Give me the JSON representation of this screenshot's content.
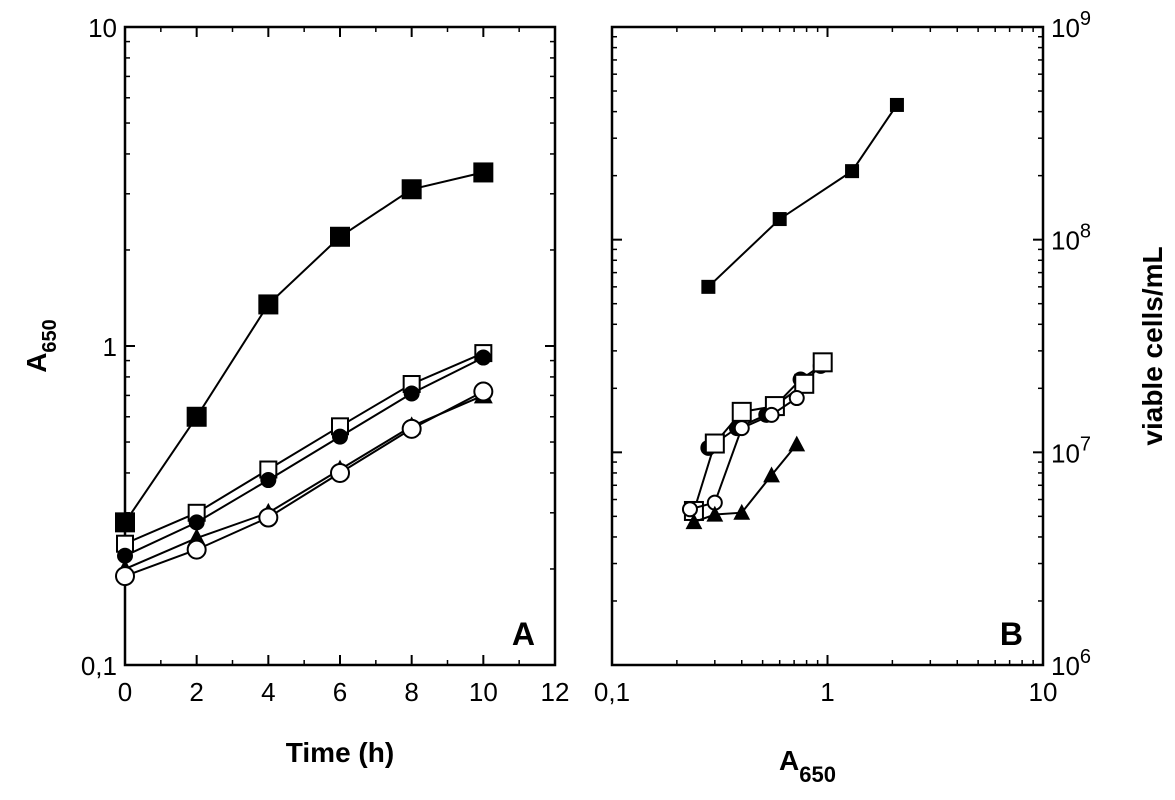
{
  "chart_data": [
    {
      "panel": "A",
      "type": "line",
      "xlabel": "Time (h)",
      "ylabel_base": "A",
      "ylabel_sub": "650",
      "x_scale": "linear",
      "y_scale": "log",
      "xlim": [
        0,
        12
      ],
      "ylim": [
        0.1,
        10
      ],
      "x_ticks": [
        "0",
        "2",
        "4",
        "6",
        "8",
        "10",
        "12"
      ],
      "y_ticks": [
        "0,1",
        "1",
        "10"
      ],
      "panel_label": "A",
      "grid": false,
      "series": [
        {
          "marker": "filled-square",
          "x": [
            0,
            2,
            4,
            6,
            8,
            10
          ],
          "y": [
            0.28,
            0.6,
            1.35,
            2.2,
            3.1,
            3.5
          ]
        },
        {
          "marker": "open-square",
          "x": [
            0,
            2,
            4,
            6,
            8,
            10
          ],
          "y": [
            0.24,
            0.3,
            0.41,
            0.56,
            0.76,
            0.95
          ]
        },
        {
          "marker": "filled-circle",
          "x": [
            0,
            2,
            4,
            6,
            8,
            10
          ],
          "y": [
            0.22,
            0.28,
            0.38,
            0.52,
            0.71,
            0.92
          ]
        },
        {
          "marker": "filled-triangle",
          "x": [
            0,
            2,
            4,
            6,
            8,
            10
          ],
          "y": [
            0.2,
            0.25,
            0.3,
            0.41,
            0.56,
            0.7
          ]
        },
        {
          "marker": "open-circle",
          "x": [
            0,
            2,
            4,
            6,
            8,
            10
          ],
          "y": [
            0.19,
            0.23,
            0.29,
            0.4,
            0.55,
            0.72
          ]
        }
      ]
    },
    {
      "panel": "B",
      "type": "line",
      "xlabel_base": "A",
      "xlabel_sub": "650",
      "ylabel": "viable cells/mL",
      "x_scale": "log",
      "y_scale": "log",
      "xlim": [
        0.1,
        10
      ],
      "ylim": [
        1000000,
        1000000000
      ],
      "x_ticks": [
        "0,1",
        "1",
        "10"
      ],
      "y_ticks_base": [
        "10",
        "10",
        "10",
        "10"
      ],
      "y_ticks_exp": [
        "6",
        "7",
        "8",
        "9"
      ],
      "panel_label": "B",
      "grid": false,
      "series": [
        {
          "marker": "filled-square",
          "x": [
            0.28,
            0.6,
            1.3,
            2.1
          ],
          "y": [
            60000000,
            125000000,
            210000000,
            430000000
          ]
        },
        {
          "marker": "filled-circle",
          "x": [
            0.28,
            0.38,
            0.52,
            0.75,
            0.93
          ],
          "y": [
            10500000,
            13000000,
            15000000,
            22000000,
            25500000
          ]
        },
        {
          "marker": "open-square",
          "x": [
            0.24,
            0.3,
            0.4,
            0.57,
            0.78,
            0.95
          ],
          "y": [
            5300000,
            11000000,
            15500000,
            16500000,
            21000000,
            26500000
          ]
        },
        {
          "marker": "open-circle",
          "x": [
            0.23,
            0.3,
            0.4,
            0.55,
            0.72
          ],
          "y": [
            5400000,
            5800000,
            13000000,
            15000000,
            18000000
          ]
        },
        {
          "marker": "filled-triangle",
          "x": [
            0.24,
            0.3,
            0.4,
            0.55,
            0.72
          ],
          "y": [
            4700000,
            5100000,
            5200000,
            7800000,
            10900000
          ]
        }
      ]
    }
  ]
}
